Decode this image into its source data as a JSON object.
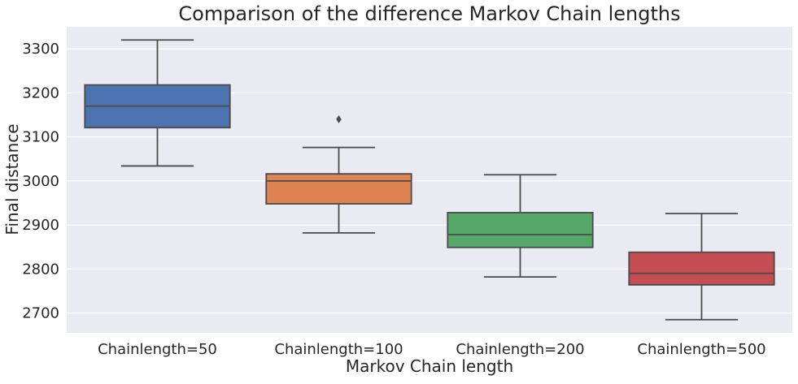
{
  "chart_data": {
    "type": "box",
    "title": "Comparison of the difference Markov Chain lengths",
    "xlabel": "Markov Chain length",
    "ylabel": "Final distance",
    "categories": [
      "Chainlength=50",
      "Chainlength=100",
      "Chainlength=200",
      "Chainlength=500"
    ],
    "boxes": [
      {
        "category": "Chainlength=50",
        "whisker_low": 3034,
        "q1": 3121,
        "median": 3170,
        "q3": 3218,
        "whisker_high": 3320,
        "outliers": [],
        "color": "#4c72b0"
      },
      {
        "category": "Chainlength=100",
        "whisker_low": 2882,
        "q1": 2948,
        "median": 3000,
        "q3": 3016,
        "whisker_high": 3076,
        "outliers": [
          3140
        ],
        "color": "#dd8452"
      },
      {
        "category": "Chainlength=200",
        "whisker_low": 2782,
        "q1": 2849,
        "median": 2878,
        "q3": 2928,
        "whisker_high": 3014,
        "outliers": [],
        "color": "#55a868"
      },
      {
        "category": "Chainlength=500",
        "whisker_low": 2685,
        "q1": 2764,
        "median": 2790,
        "q3": 2838,
        "whisker_high": 2926,
        "outliers": [],
        "color": "#c44e52"
      }
    ],
    "yticks": [
      2700,
      2800,
      2900,
      3000,
      3100,
      3200,
      3300
    ],
    "ylim": [
      2655,
      3350
    ],
    "grid": true,
    "background": "#eaeaf2"
  }
}
